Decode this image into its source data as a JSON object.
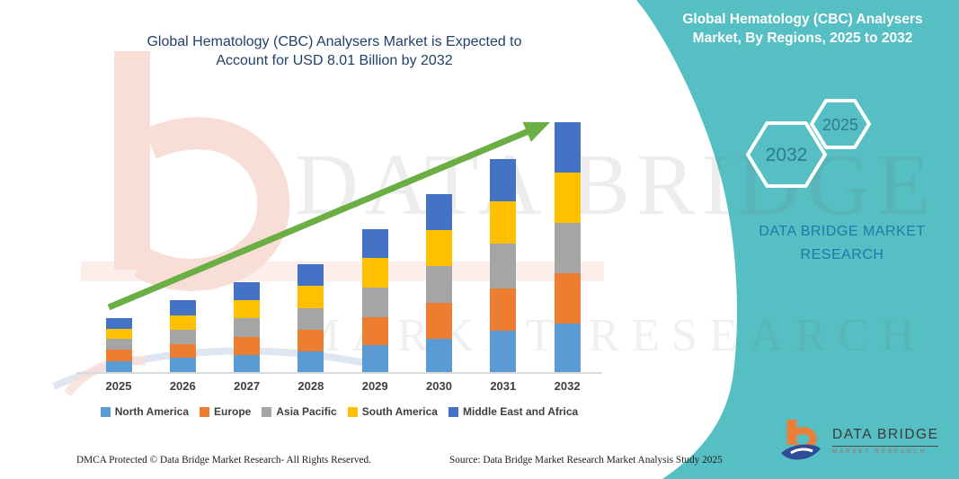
{
  "titles": {
    "main_line1": "Global Hematology (CBC) Analysers Market is Expected to",
    "main_line2": "Account for USD 8.01 Billion by 2032"
  },
  "right_panel": {
    "title_line1": "Global Hematology (CBC) Analysers",
    "title_line2": "Market, By Regions, 2025 to 2032",
    "hexagon_back_label": "2032",
    "hexagon_front_label": "2025",
    "brand_line1": "DATA BRIDGE MARKET",
    "brand_line2": "RESEARCH",
    "band_color": "#56BFC3"
  },
  "watermark": {
    "line1": "DATA BRIDGE",
    "line2": "MARKET RESEARCH"
  },
  "logo": {
    "name": "DATA BRIDGE",
    "subtitle": "MARKET RESEARCH"
  },
  "footer": {
    "dmca": "DMCA Protected © Data Bridge Market Research-  All Rights Reserved.",
    "source": "Source: Data Bridge Market Research  Market Analysis Study 2025"
  },
  "chart_data": {
    "type": "bar",
    "subtype": "stacked-vertical",
    "title": "Global Hematology (CBC) Analysers Market is Expected to Account for USD 8.01 Billion by 2032",
    "unit": "USD Billion",
    "categories": [
      "2025",
      "2026",
      "2027",
      "2028",
      "2029",
      "2030",
      "2031",
      "2032"
    ],
    "series": [
      {
        "name": "North America",
        "color": "#5B9BD5",
        "values": [
          0.36,
          0.45,
          0.56,
          0.66,
          0.88,
          1.08,
          1.32,
          1.56
        ]
      },
      {
        "name": "Europe",
        "color": "#ED7D31",
        "values": [
          0.36,
          0.45,
          0.57,
          0.69,
          0.89,
          1.13,
          1.36,
          1.6
        ]
      },
      {
        "name": "Asia Pacific",
        "color": "#A5A5A5",
        "values": [
          0.34,
          0.45,
          0.59,
          0.7,
          0.93,
          1.18,
          1.45,
          1.63
        ]
      },
      {
        "name": "South America",
        "color": "#FFC000",
        "values": [
          0.33,
          0.46,
          0.58,
          0.72,
          0.97,
          1.18,
          1.35,
          1.6
        ]
      },
      {
        "name": "Middle East and Africa",
        "color": "#4472C4",
        "values": [
          0.34,
          0.49,
          0.58,
          0.69,
          0.91,
          1.13,
          1.35,
          1.62
        ]
      }
    ],
    "totals": [
      1.73,
      2.3,
      2.88,
      3.46,
      4.58,
      5.7,
      6.83,
      8.01
    ],
    "highlight_value": "USD 8.01 Billion by 2032",
    "annotations": [
      "upward trend arrow"
    ],
    "trend_arrow_color": "#6BAE44",
    "legend_position": "bottom",
    "gridlines": false,
    "y_axis_shown": false
  }
}
